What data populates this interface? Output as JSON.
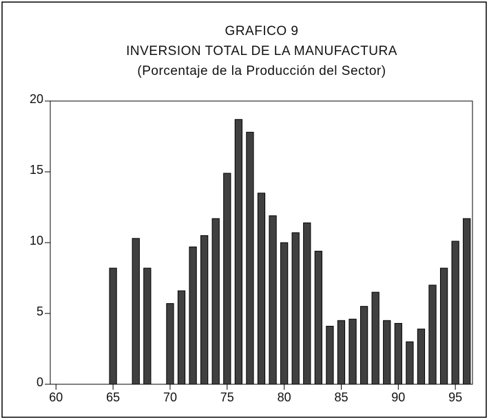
{
  "chart_data": {
    "type": "bar",
    "title": "GRAFICO 9",
    "subtitle": "INVERSION TOTAL DE LA MANUFACTURA",
    "y_label": "(Porcentaje de la Producción del Sector)",
    "x": [
      60,
      61,
      62,
      63,
      64,
      65,
      66,
      67,
      68,
      69,
      70,
      71,
      72,
      73,
      74,
      75,
      76,
      77,
      78,
      79,
      80,
      81,
      82,
      83,
      84,
      85,
      86,
      87,
      88,
      89,
      90,
      91,
      92,
      93,
      94,
      95,
      96
    ],
    "values": [
      null,
      null,
      null,
      null,
      null,
      8.2,
      null,
      10.3,
      8.2,
      null,
      5.7,
      6.6,
      9.7,
      10.5,
      11.7,
      14.9,
      18.7,
      17.8,
      13.5,
      11.9,
      10.0,
      10.7,
      11.4,
      9.4,
      4.1,
      4.5,
      4.6,
      5.5,
      6.5,
      4.5,
      4.3,
      3.0,
      3.9,
      7.0,
      8.2,
      10.1,
      11.7
    ],
    "color": "#404040",
    "xlim": [
      59.5,
      96.5
    ],
    "xticks": [
      60,
      65,
      70,
      75,
      80,
      85,
      90,
      95
    ],
    "ylim": [
      0,
      20
    ],
    "yticks": [
      0,
      5,
      10,
      15,
      20
    ]
  }
}
